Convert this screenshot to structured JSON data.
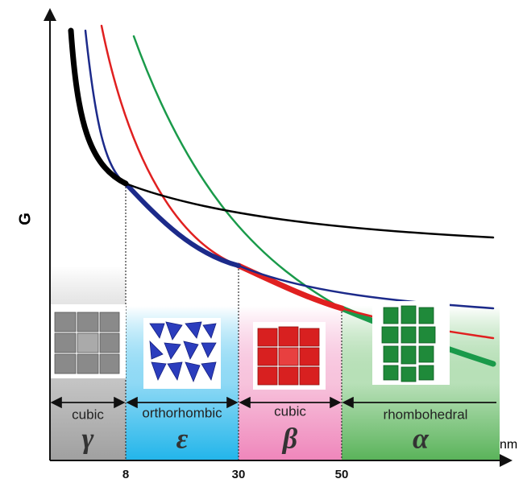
{
  "axes": {
    "y_label": "G",
    "x_unit": "nm",
    "x_ticks": [
      "8",
      "30",
      "50"
    ]
  },
  "regions": [
    {
      "structure": "cubic",
      "phase": "γ"
    },
    {
      "structure": "orthorhombic",
      "phase": "ε"
    },
    {
      "structure": "cubic",
      "phase": "β"
    },
    {
      "structure": "rhombohedral",
      "phase": "α"
    }
  ]
}
